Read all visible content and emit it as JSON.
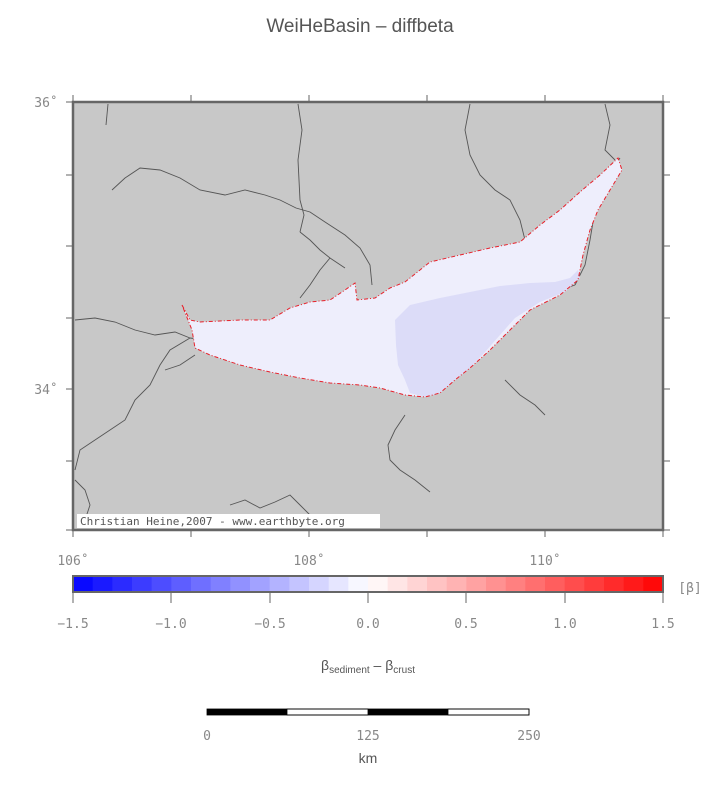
{
  "title": "WeiHeBasin – diffbeta",
  "credit": "Christian Heine,2007 - www.earthbyte.org",
  "map": {
    "lat_labels": [
      "36˚",
      "34˚"
    ],
    "lon_labels": [
      "106˚",
      "108˚",
      "110˚"
    ],
    "land_color": "#c8c8c8",
    "outline_color": "#e8202a"
  },
  "colorbar": {
    "unit": "[β]",
    "tick_labels": [
      "−1.5",
      "−1.0",
      "−0.5",
      "0.0",
      "0.5",
      "1.0",
      "1.5"
    ],
    "min": -1.5,
    "max": 1.5,
    "label_main_a": "β",
    "label_sub_a": "sediment",
    "label_dash": " – ",
    "label_main_b": "β",
    "label_sub_b": "crust"
  },
  "scalebar": {
    "tick_labels": [
      "0",
      "125",
      "250"
    ],
    "unit": "km"
  }
}
